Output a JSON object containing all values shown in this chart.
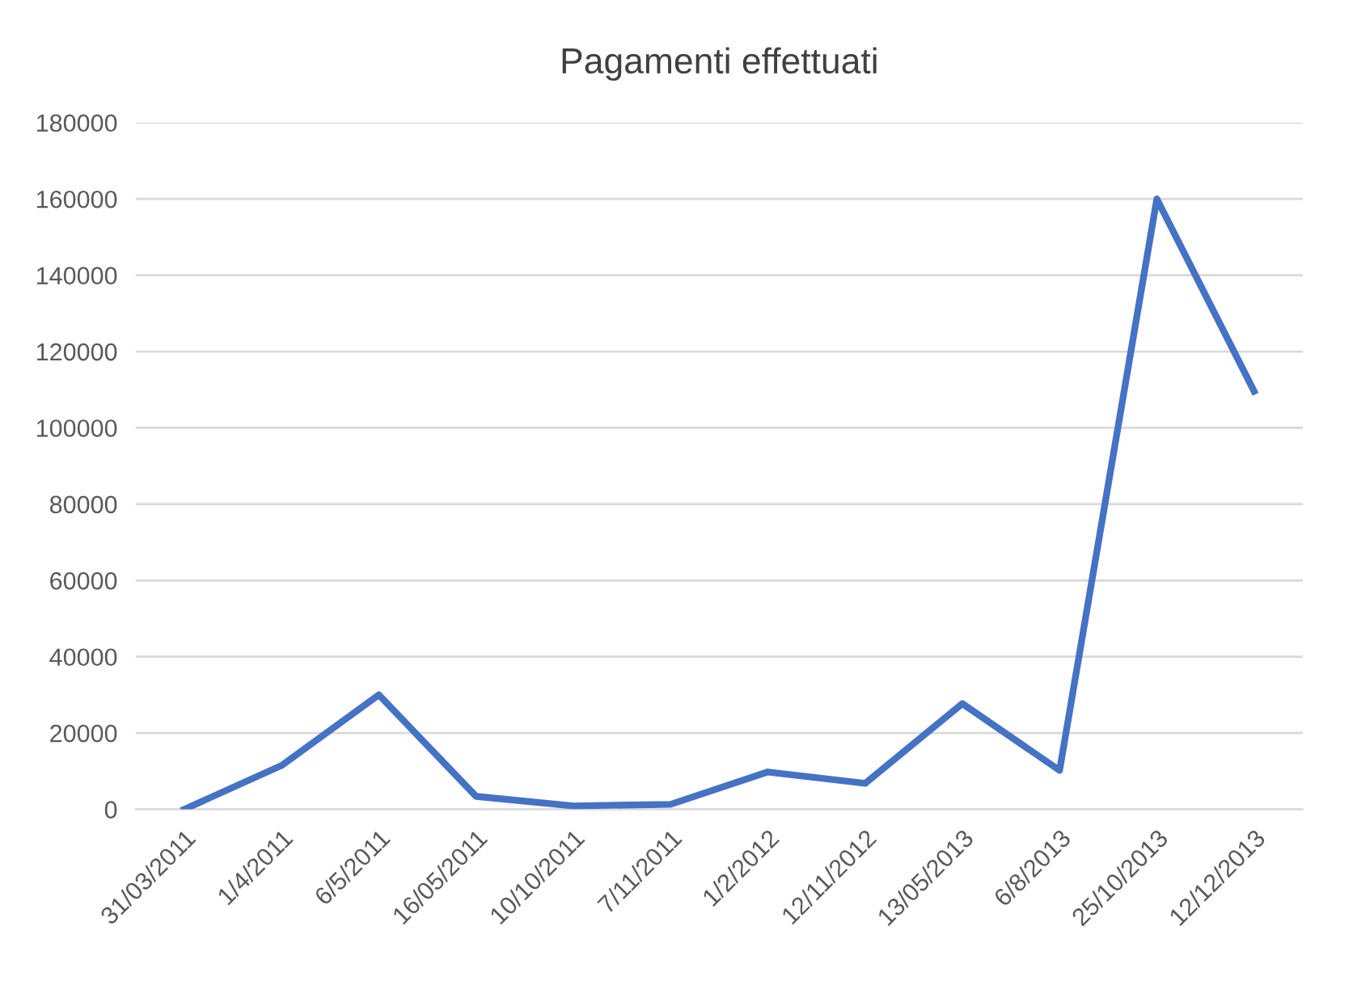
{
  "chart_data": {
    "type": "line",
    "title": "Pagamenti effettuati",
    "categories": [
      "31/03/2011",
      "1/4/2011",
      "6/5/2011",
      "16/05/2011",
      "10/10/2011",
      "7/11/2011",
      "1/2/2012",
      "12/11/2012",
      "13/05/2013",
      "6/8/2013",
      "25/10/2013",
      "12/12/2013"
    ],
    "series": [
      {
        "color": "#4472c4",
        "values": [
          0,
          11500,
          30000,
          3400,
          900,
          1300,
          9800,
          6800,
          27700,
          10200,
          160000,
          109600
        ]
      }
    ],
    "ylim": [
      0,
      180000
    ],
    "yticks": [
      0,
      20000,
      40000,
      60000,
      80000,
      100000,
      120000,
      140000,
      160000,
      180000
    ],
    "grid": "y",
    "legend": false,
    "marker": "none",
    "line_style": "solid"
  }
}
